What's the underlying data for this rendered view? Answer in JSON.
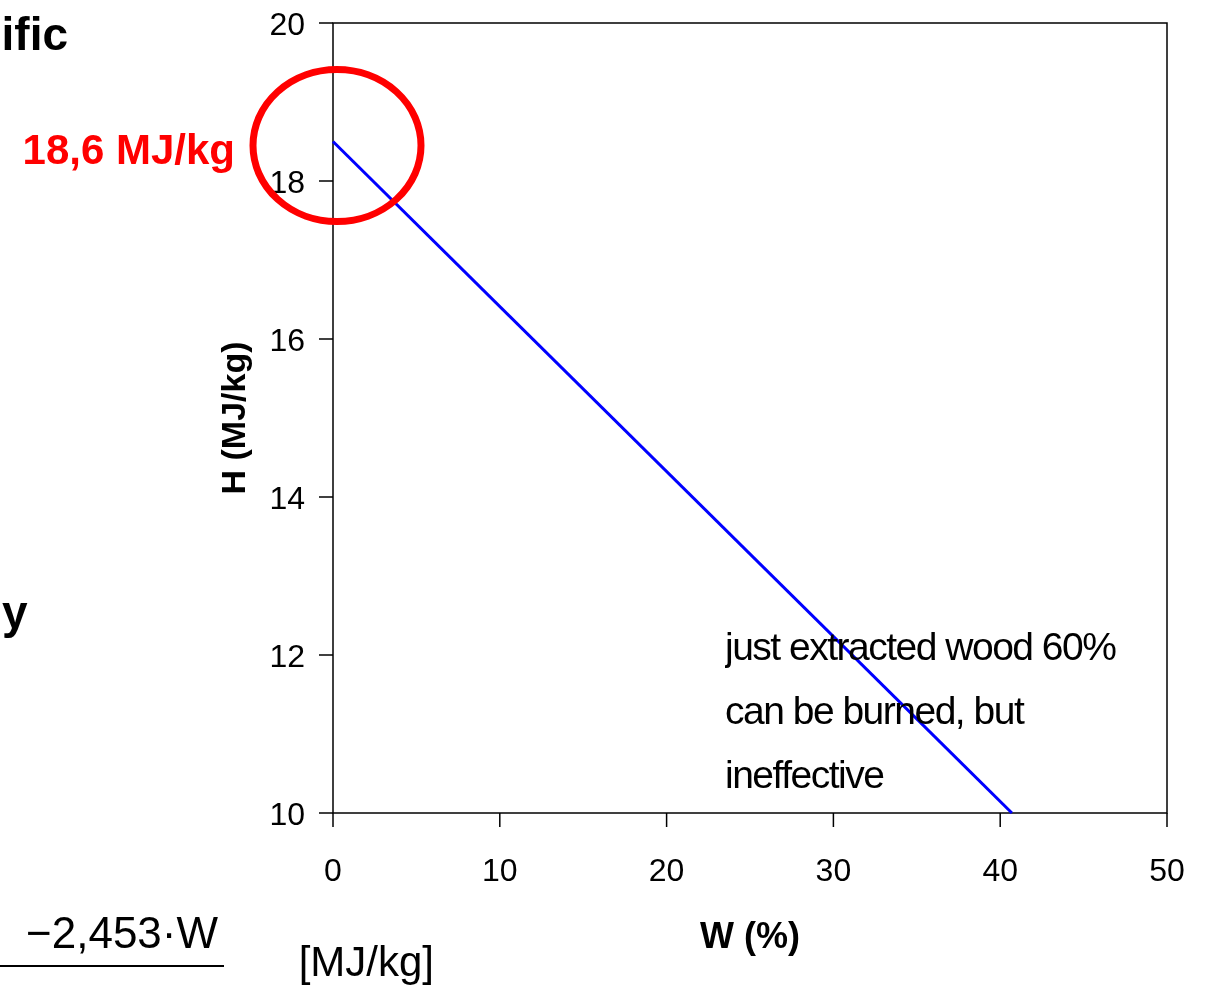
{
  "chart_data": {
    "type": "line",
    "xlabel": "W (%)",
    "ylabel": "H (MJ/kg)",
    "x": [
      0,
      40.7
    ],
    "series": [
      {
        "color": "#0000ff",
        "values": [
          18.5,
          10
        ]
      }
    ],
    "xlim": [
      0,
      50
    ],
    "xticks": [
      0,
      10,
      20,
      30,
      40,
      50
    ],
    "ylim": [
      10,
      20
    ],
    "yticks": [
      10,
      12,
      14,
      16,
      18,
      20
    ],
    "grid": false,
    "marker": "none",
    "line_style": "solid",
    "annotations": [
      "18,6 MJ/kg",
      "just extracted wood 60% can be burned, but ineffective",
      "ific",
      "y",
      "−2,453·W",
      "[MJ/kg]"
    ]
  }
}
